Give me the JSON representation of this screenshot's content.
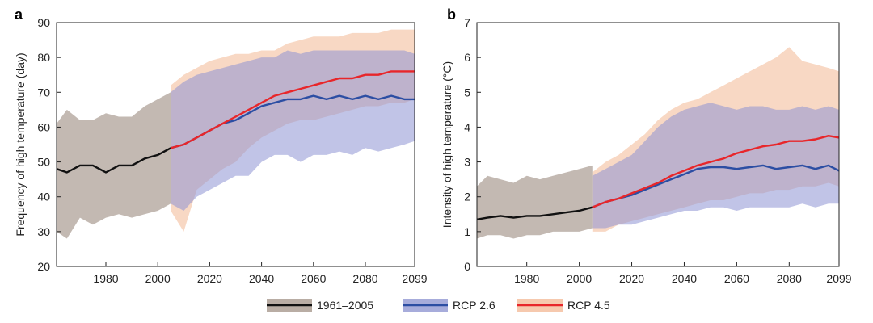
{
  "legend": [
    {
      "label": "1961–2005",
      "line": "#111111",
      "band": "#b9ada4"
    },
    {
      "label": "RCP 2.6",
      "line": "#2c4ea3",
      "band": "#a7acdb"
    },
    {
      "label": "RCP 4.5",
      "line": "#e8262a",
      "band": "#f6c9ae"
    }
  ],
  "chart_data": [
    {
      "type": "line",
      "panel": "a",
      "ylabel": "Frequency of high temperature (day)",
      "xlabel": "",
      "xlim": [
        1961,
        2099
      ],
      "ylim": [
        20,
        90
      ],
      "xticks": [
        1980,
        2000,
        2020,
        2040,
        2060,
        2080,
        2099
      ],
      "yticks": [
        20,
        30,
        40,
        50,
        60,
        70,
        80,
        90
      ],
      "series": [
        {
          "name": "1961–2005",
          "x": [
            1961,
            1965,
            1970,
            1975,
            1980,
            1985,
            1990,
            1995,
            2000,
            2005
          ],
          "values": [
            48,
            47,
            49,
            49,
            47,
            49,
            49,
            51,
            52,
            54
          ],
          "lower": [
            30,
            28,
            34,
            32,
            34,
            35,
            34,
            35,
            36,
            38
          ],
          "upper": [
            61,
            65,
            62,
            62,
            64,
            63,
            63,
            66,
            68,
            70
          ]
        },
        {
          "name": "RCP 2.6",
          "x": [
            2005,
            2010,
            2015,
            2020,
            2025,
            2030,
            2035,
            2040,
            2045,
            2050,
            2055,
            2060,
            2065,
            2070,
            2075,
            2080,
            2085,
            2090,
            2095,
            2099
          ],
          "values": [
            54,
            55,
            57,
            59,
            61,
            62,
            64,
            66,
            67,
            68,
            68,
            69,
            68,
            69,
            68,
            69,
            68,
            69,
            68,
            68
          ],
          "lower": [
            38,
            36,
            40,
            42,
            44,
            46,
            46,
            50,
            52,
            52,
            50,
            52,
            52,
            53,
            52,
            54,
            53,
            54,
            55,
            56
          ],
          "upper": [
            70,
            73,
            75,
            76,
            77,
            78,
            79,
            80,
            80,
            82,
            81,
            82,
            82,
            82,
            82,
            82,
            82,
            82,
            82,
            81
          ]
        },
        {
          "name": "RCP 4.5",
          "x": [
            2005,
            2010,
            2015,
            2020,
            2025,
            2030,
            2035,
            2040,
            2045,
            2050,
            2055,
            2060,
            2065,
            2070,
            2075,
            2080,
            2085,
            2090,
            2095,
            2099
          ],
          "values": [
            54,
            55,
            57,
            59,
            61,
            63,
            65,
            67,
            69,
            70,
            71,
            72,
            73,
            74,
            74,
            75,
            75,
            76,
            76,
            76
          ],
          "lower": [
            36,
            30,
            42,
            45,
            48,
            50,
            54,
            57,
            59,
            61,
            62,
            62,
            63,
            64,
            65,
            66,
            66,
            67,
            67,
            68
          ],
          "upper": [
            72,
            75,
            77,
            79,
            80,
            81,
            81,
            82,
            82,
            84,
            85,
            86,
            86,
            86,
            87,
            87,
            87,
            88,
            88,
            88
          ]
        }
      ]
    },
    {
      "type": "line",
      "panel": "b",
      "ylabel": "Intensity of high temperature (°C)",
      "xlabel": "",
      "xlim": [
        1961,
        2099
      ],
      "ylim": [
        0,
        7
      ],
      "xticks": [
        1980,
        2000,
        2020,
        2040,
        2060,
        2080,
        2099
      ],
      "yticks": [
        0,
        1,
        2,
        3,
        4,
        5,
        6,
        7
      ],
      "series": [
        {
          "name": "1961–2005",
          "x": [
            1961,
            1965,
            1970,
            1975,
            1980,
            1985,
            1990,
            1995,
            2000,
            2005
          ],
          "values": [
            1.35,
            1.4,
            1.45,
            1.4,
            1.45,
            1.45,
            1.5,
            1.55,
            1.6,
            1.7
          ],
          "lower": [
            0.8,
            0.9,
            0.9,
            0.8,
            0.9,
            0.9,
            1.0,
            1.0,
            1.0,
            1.1
          ],
          "upper": [
            2.3,
            2.6,
            2.5,
            2.4,
            2.6,
            2.5,
            2.6,
            2.7,
            2.8,
            2.9
          ]
        },
        {
          "name": "RCP 2.6",
          "x": [
            2005,
            2010,
            2015,
            2020,
            2025,
            2030,
            2035,
            2040,
            2045,
            2050,
            2055,
            2060,
            2065,
            2070,
            2075,
            2080,
            2085,
            2090,
            2095,
            2099
          ],
          "values": [
            1.7,
            1.85,
            1.95,
            2.05,
            2.2,
            2.35,
            2.5,
            2.65,
            2.8,
            2.85,
            2.85,
            2.8,
            2.85,
            2.9,
            2.8,
            2.85,
            2.9,
            2.8,
            2.9,
            2.75
          ],
          "lower": [
            1.1,
            1.1,
            1.2,
            1.2,
            1.3,
            1.4,
            1.5,
            1.6,
            1.6,
            1.7,
            1.7,
            1.6,
            1.7,
            1.7,
            1.7,
            1.7,
            1.8,
            1.7,
            1.8,
            1.8
          ],
          "upper": [
            2.6,
            2.8,
            3.0,
            3.2,
            3.6,
            4.0,
            4.3,
            4.5,
            4.6,
            4.7,
            4.6,
            4.5,
            4.6,
            4.6,
            4.5,
            4.5,
            4.6,
            4.5,
            4.6,
            4.5
          ]
        },
        {
          "name": "RCP 4.5",
          "x": [
            2005,
            2010,
            2015,
            2020,
            2025,
            2030,
            2035,
            2040,
            2045,
            2050,
            2055,
            2060,
            2065,
            2070,
            2075,
            2080,
            2085,
            2090,
            2095,
            2099
          ],
          "values": [
            1.7,
            1.85,
            1.95,
            2.1,
            2.25,
            2.4,
            2.6,
            2.75,
            2.9,
            3.0,
            3.1,
            3.25,
            3.35,
            3.45,
            3.5,
            3.6,
            3.6,
            3.65,
            3.75,
            3.7
          ],
          "lower": [
            1.0,
            1.0,
            1.2,
            1.3,
            1.4,
            1.5,
            1.6,
            1.7,
            1.8,
            1.9,
            1.9,
            2.0,
            2.1,
            2.1,
            2.2,
            2.2,
            2.3,
            2.3,
            2.4,
            2.3
          ],
          "upper": [
            2.7,
            3.0,
            3.2,
            3.5,
            3.8,
            4.2,
            4.5,
            4.7,
            4.8,
            5.0,
            5.2,
            5.4,
            5.6,
            5.8,
            6.0,
            6.3,
            5.9,
            5.8,
            5.7,
            5.6
          ]
        }
      ]
    }
  ]
}
